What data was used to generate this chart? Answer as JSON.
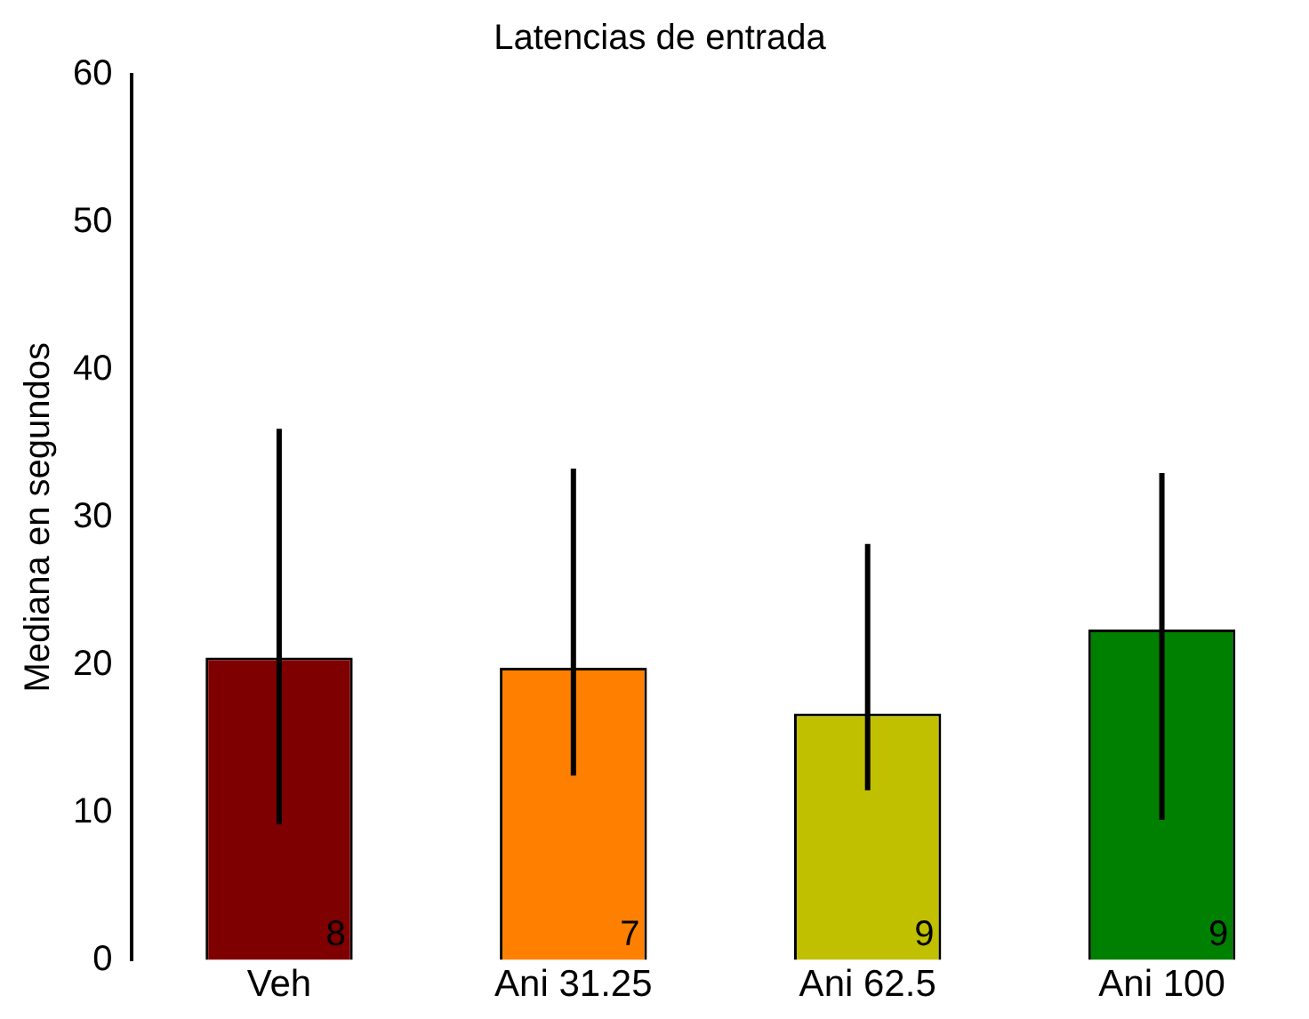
{
  "chart_data": {
    "type": "bar",
    "title": "Latencias de entrada",
    "ylabel": "Mediana en segundos",
    "categories": [
      "Veh",
      "Ani 31.25",
      "Ani 62.5",
      "Ani 100"
    ],
    "values": [
      20.5,
      19.8,
      16.7,
      22.4
    ],
    "colors": [
      "#7f0000",
      "#ff8000",
      "#c0c000",
      "#008000"
    ],
    "errors": [
      [
        9.2,
        36
      ],
      [
        12.5,
        33.3
      ],
      [
        11.5,
        28.2
      ],
      [
        9.5,
        33
      ]
    ],
    "ylim": [
      0,
      60
    ],
    "yticks": [
      0,
      10,
      20,
      30,
      40,
      50,
      60
    ],
    "grid": false,
    "legend": false,
    "annotations": [
      "8",
      "7",
      "9",
      "9"
    ]
  }
}
